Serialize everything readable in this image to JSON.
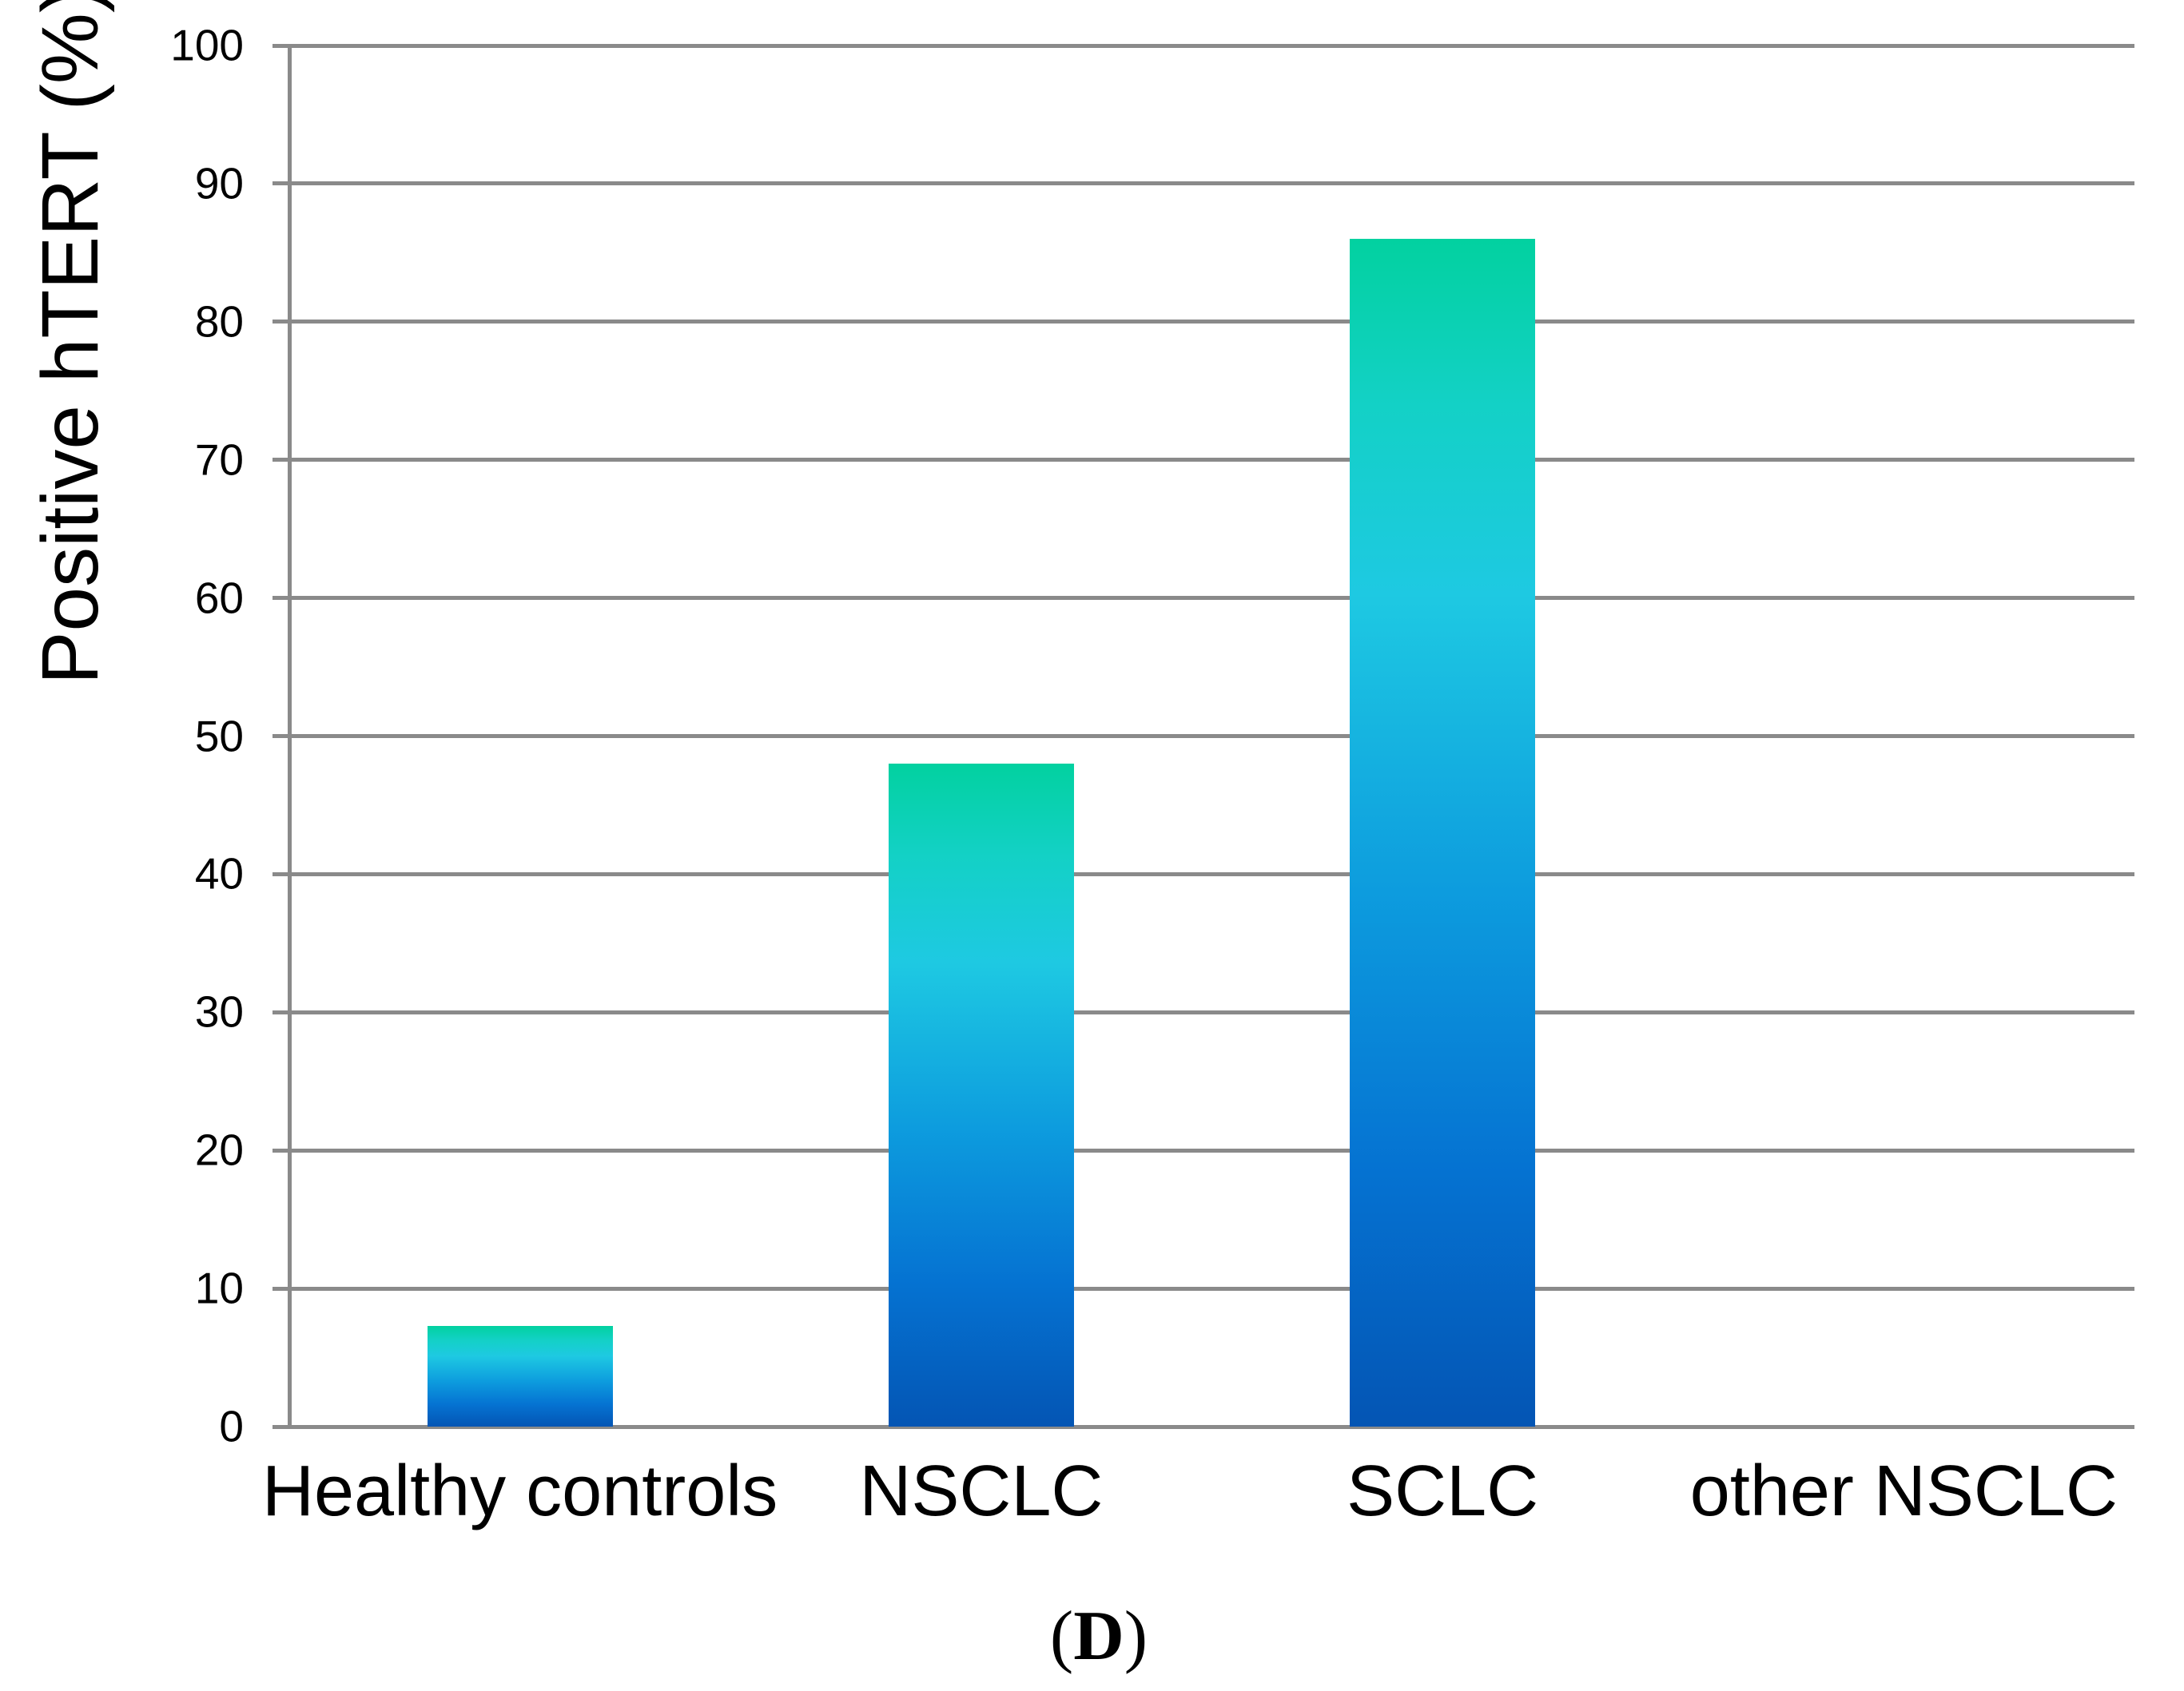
{
  "chart_data": {
    "type": "bar",
    "title": "",
    "xlabel": "",
    "ylabel": "Positive hTERT (%)",
    "categories": [
      "Healthy controls",
      "NSCLC",
      "SCLC",
      "other NSCLC"
    ],
    "values": [
      7.3,
      48,
      86,
      0
    ],
    "ylim": [
      0,
      100
    ],
    "ytick_step": 10,
    "ytick_labels": [
      "0",
      "10",
      "20",
      "30",
      "40",
      "50",
      "60",
      "70",
      "80",
      "90",
      "100"
    ],
    "grid": true,
    "legend": false,
    "grid_color": "#8a8a8a",
    "text_color": "#000000",
    "bar_gradient": [
      {
        "stop": 0.0,
        "color": "#02d1a0"
      },
      {
        "stop": 0.14,
        "color": "#13d1c6"
      },
      {
        "stop": 0.3,
        "color": "#1ec9e2"
      },
      {
        "stop": 0.55,
        "color": "#0d9cde"
      },
      {
        "stop": 0.78,
        "color": "#0573d2"
      },
      {
        "stop": 1.0,
        "color": "#0455b4"
      }
    ]
  },
  "caption": {
    "open": "(",
    "label": "D",
    "close": ")"
  }
}
